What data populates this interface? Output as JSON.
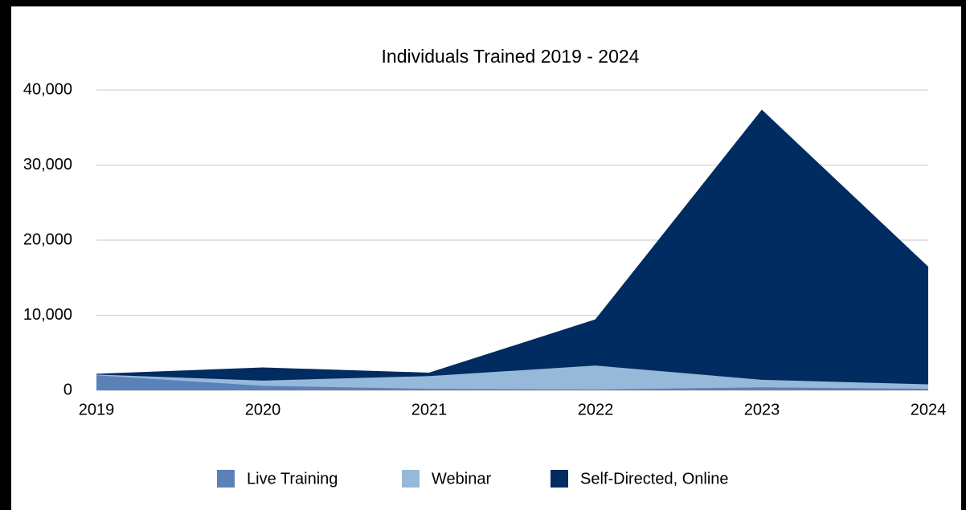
{
  "chart_data": {
    "type": "stacked_area",
    "title": "Individuals Trained 2019 - 2024",
    "categories": [
      "2019",
      "2020",
      "2021",
      "2022",
      "2023",
      "2024"
    ],
    "series": [
      {
        "name": "Live Training",
        "color": "#5b82b8",
        "values": [
          2000,
          600,
          200,
          100,
          400,
          200
        ]
      },
      {
        "name": "Webinar",
        "color": "#96b8d9",
        "values": [
          100,
          700,
          1700,
          3200,
          1000,
          600
        ]
      },
      {
        "name": "Self-Directed, Online",
        "color": "#002c61",
        "values": [
          50,
          1700,
          400,
          6100,
          35900,
          15600
        ]
      }
    ],
    "ylim": [
      0,
      40000
    ],
    "yticks": [
      0,
      {
        "value": 10000,
        "label": "10,000"
      },
      {
        "value": 20000,
        "label": "20,000"
      },
      {
        "value": 30000,
        "label": "30,000"
      },
      {
        "value": 40000,
        "label": "40,000"
      }
    ],
    "grid": true,
    "legend": "bottom"
  }
}
